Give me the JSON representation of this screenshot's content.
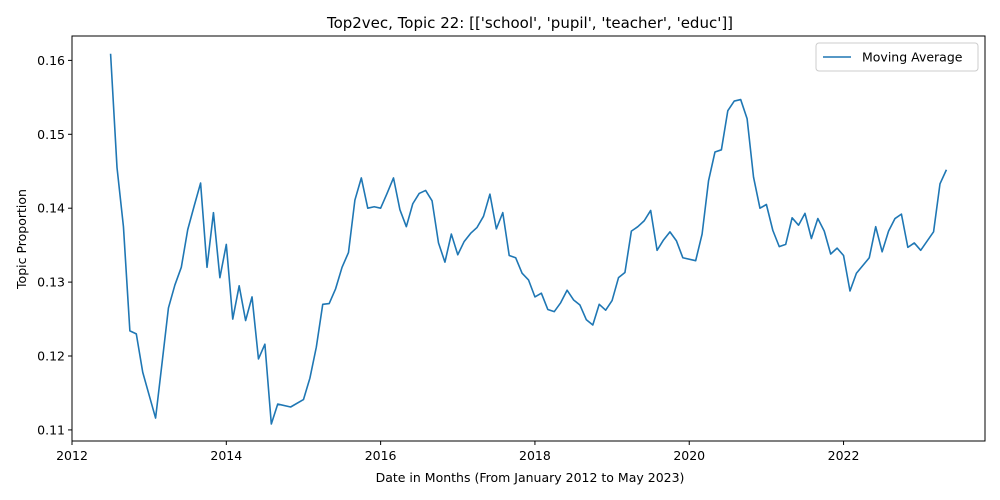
{
  "chart_data": {
    "type": "line",
    "title": "Top2vec, Topic 22: [['school', 'pupil', 'teacher', 'educ']]",
    "xlabel": "Date in Months (From January 2012 to May 2023)",
    "ylabel": "Topic Proportion",
    "xlim": [
      "2012-01",
      "2023-11"
    ],
    "ylim": [
      0.1085,
      0.1633
    ],
    "x_ticks": [
      "2012",
      "2014",
      "2016",
      "2018",
      "2020",
      "2022"
    ],
    "y_ticks": [
      "0.11",
      "0.12",
      "0.13",
      "0.14",
      "0.15",
      "0.16"
    ],
    "grid": false,
    "legend_position": "top-right",
    "series": [
      {
        "name": "Moving Average",
        "color": "#1f77b4",
        "x": [
          "2012-07",
          "2012-08",
          "2012-09",
          "2012-10",
          "2012-11",
          "2012-12",
          "2013-01",
          "2013-02",
          "2013-03",
          "2013-04",
          "2013-05",
          "2013-06",
          "2013-07",
          "2013-08",
          "2013-09",
          "2013-10",
          "2013-11",
          "2013-12",
          "2014-01",
          "2014-02",
          "2014-03",
          "2014-04",
          "2014-05",
          "2014-06",
          "2014-07",
          "2014-08",
          "2014-09",
          "2014-11",
          "2015-01",
          "2015-02",
          "2015-03",
          "2015-04",
          "2015-05",
          "2015-06",
          "2015-07",
          "2015-08",
          "2015-09",
          "2015-10",
          "2015-11",
          "2015-12",
          "2016-01",
          "2016-02",
          "2016-03",
          "2016-04",
          "2016-05",
          "2016-06",
          "2016-07",
          "2016-08",
          "2016-09",
          "2016-10",
          "2016-11",
          "2016-12",
          "2017-01",
          "2017-02",
          "2017-03",
          "2017-04",
          "2017-05",
          "2017-06",
          "2017-07",
          "2017-08",
          "2017-09",
          "2017-10",
          "2017-11",
          "2017-12",
          "2018-01",
          "2018-02",
          "2018-03",
          "2018-04",
          "2018-05",
          "2018-06",
          "2018-07",
          "2018-08",
          "2018-09",
          "2018-10",
          "2018-11",
          "2018-12",
          "2019-01",
          "2019-02",
          "2019-03",
          "2019-04",
          "2019-05",
          "2019-06",
          "2019-07",
          "2019-08",
          "2019-09",
          "2019-10",
          "2019-11",
          "2019-12",
          "2020-02",
          "2020-03",
          "2020-04",
          "2020-05",
          "2020-06",
          "2020-07",
          "2020-08",
          "2020-09",
          "2020-10",
          "2020-11",
          "2020-12",
          "2021-01",
          "2021-02",
          "2021-03",
          "2021-04",
          "2021-05",
          "2021-06",
          "2021-07",
          "2021-08",
          "2021-09",
          "2021-10",
          "2021-11",
          "2021-12",
          "2022-01",
          "2022-02",
          "2022-03",
          "2022-05",
          "2022-06",
          "2022-07",
          "2022-08",
          "2022-09",
          "2022-10",
          "2022-11",
          "2022-12",
          "2023-01",
          "2023-03",
          "2023-04",
          "2023-05"
        ],
        "values": [
          0.1609,
          0.1455,
          0.1375,
          0.1234,
          0.123,
          0.1178,
          0.1147,
          0.1116,
          0.119,
          0.1265,
          0.1296,
          0.132,
          0.1371,
          0.1403,
          0.1434,
          0.132,
          0.1394,
          0.1306,
          0.1351,
          0.125,
          0.1295,
          0.1248,
          0.128,
          0.1196,
          0.1216,
          0.1108,
          0.1135,
          0.1131,
          0.1141,
          0.117,
          0.1212,
          0.127,
          0.1271,
          0.1291,
          0.132,
          0.134,
          0.1411,
          0.1441,
          0.14,
          0.1402,
          0.14,
          0.142,
          0.1441,
          0.1398,
          0.1375,
          0.1406,
          0.142,
          0.1424,
          0.141,
          0.1353,
          0.1327,
          0.1365,
          0.1337,
          0.1355,
          0.1366,
          0.1374,
          0.1389,
          0.1419,
          0.1372,
          0.1394,
          0.1336,
          0.1333,
          0.1312,
          0.1303,
          0.128,
          0.1285,
          0.1263,
          0.126,
          0.1272,
          0.1289,
          0.1276,
          0.1269,
          0.1249,
          0.1242,
          0.127,
          0.1262,
          0.1275,
          0.1306,
          0.1313,
          0.1369,
          0.1375,
          0.1383,
          0.1397,
          0.1343,
          0.1357,
          0.1368,
          0.1356,
          0.1333,
          0.1329,
          0.1365,
          0.1437,
          0.1476,
          0.1479,
          0.1532,
          0.1545,
          0.1547,
          0.1521,
          0.1442,
          0.14,
          0.1405,
          0.137,
          0.1348,
          0.1351,
          0.1387,
          0.1377,
          0.1393,
          0.1359,
          0.1386,
          0.1369,
          0.1338,
          0.1346,
          0.1336,
          0.1288,
          0.1312,
          0.1333,
          0.1375,
          0.1341,
          0.1369,
          0.1386,
          0.1392,
          0.1347,
          0.1353,
          0.1343,
          0.1368,
          0.1433,
          0.1452
        ]
      }
    ]
  }
}
